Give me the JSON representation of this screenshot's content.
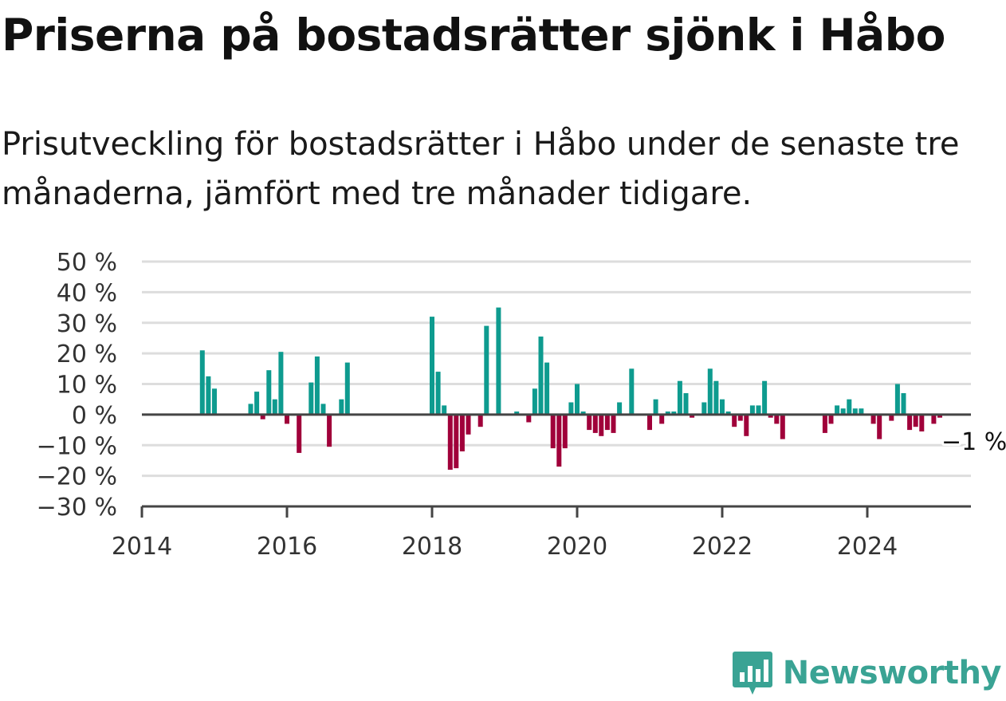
{
  "title": "Priserna på bostadsrätter sjönk i Håbo",
  "subtitle": "Prisutveckling för bostadsrätter i Håbo under de senaste tre månaderna, jämfört med tre månader tidigare.",
  "brand": {
    "name": "Newsworthy",
    "icon": "newsworthy-logo-icon",
    "color": "#3aa394"
  },
  "colors": {
    "positive": "#0e9b8f",
    "negative": "#a0003a",
    "grid": "#dddddd",
    "axis": "#444444"
  },
  "chart_data": {
    "type": "bar",
    "title": "",
    "xlabel": "",
    "ylabel": "",
    "ylim": [
      -30,
      50
    ],
    "xlim": [
      "2014-01",
      "2025-06"
    ],
    "grid": true,
    "y_ticks": [
      {
        "value": 50,
        "label": "50 %"
      },
      {
        "value": 40,
        "label": "40 %"
      },
      {
        "value": 30,
        "label": "30 %"
      },
      {
        "value": 20,
        "label": "20 %"
      },
      {
        "value": 10,
        "label": "10 %"
      },
      {
        "value": 0,
        "label": "0 %"
      },
      {
        "value": -10,
        "label": "−10 %"
      },
      {
        "value": -20,
        "label": "−20 %"
      },
      {
        "value": -30,
        "label": "−30 %"
      }
    ],
    "x_ticks": [
      {
        "value": "2014-01",
        "label": "2014"
      },
      {
        "value": "2016-01",
        "label": "2016"
      },
      {
        "value": "2018-01",
        "label": "2018"
      },
      {
        "value": "2020-01",
        "label": "2020"
      },
      {
        "value": "2022-01",
        "label": "2022"
      },
      {
        "value": "2024-01",
        "label": "2024"
      }
    ],
    "annotation": {
      "label": "−1 %",
      "x": "2025-01",
      "y": -1
    },
    "series": [
      {
        "x": [
          "2014-11",
          "2014-12",
          "2015-01",
          "2015-07",
          "2015-08",
          "2015-09",
          "2015-10",
          "2015-11",
          "2015-12",
          "2016-01",
          "2016-03",
          "2016-05",
          "2016-06",
          "2016-07",
          "2016-08",
          "2016-10",
          "2016-11",
          "2018-01",
          "2018-02",
          "2018-03",
          "2018-04",
          "2018-05",
          "2018-06",
          "2018-07",
          "2018-09",
          "2018-10",
          "2018-12",
          "2019-03",
          "2019-05",
          "2019-06",
          "2019-07",
          "2019-08",
          "2019-09",
          "2019-10",
          "2019-11",
          "2019-12",
          "2020-01",
          "2020-02",
          "2020-03",
          "2020-04",
          "2020-05",
          "2020-06",
          "2020-07",
          "2020-08",
          "2020-10",
          "2021-01",
          "2021-02",
          "2021-03",
          "2021-04",
          "2021-05",
          "2021-06",
          "2021-07",
          "2021-08",
          "2021-10",
          "2021-11",
          "2021-12",
          "2022-01",
          "2022-02",
          "2022-03",
          "2022-04",
          "2022-05",
          "2022-06",
          "2022-07",
          "2022-08",
          "2022-09",
          "2022-10",
          "2022-11",
          "2023-06",
          "2023-07",
          "2023-08",
          "2023-09",
          "2023-10",
          "2023-11",
          "2023-12",
          "2024-02",
          "2024-03",
          "2024-05",
          "2024-06",
          "2024-07",
          "2024-08",
          "2024-09",
          "2024-10",
          "2024-12",
          "2025-01"
        ],
        "values": [
          21,
          12.5,
          8.5,
          3.5,
          7.5,
          -1.5,
          14.5,
          5,
          20.5,
          -3,
          -12.5,
          10.5,
          19,
          3.5,
          -10.5,
          5,
          17,
          32,
          14,
          3,
          -18,
          -17.5,
          -12,
          -6.5,
          -4,
          29,
          35,
          1,
          -2.5,
          8.5,
          25.5,
          17,
          -11,
          -17,
          -11,
          4,
          10,
          1,
          -5,
          -6,
          -7,
          -5,
          -6,
          4,
          15,
          -5,
          5,
          -3,
          1,
          1,
          11,
          7,
          -1,
          4,
          15,
          11,
          5,
          1,
          -4,
          -2,
          -7,
          3,
          3,
          11,
          -1,
          -3,
          -8,
          -6,
          -3,
          3,
          2,
          5,
          2,
          2,
          -3,
          -8,
          -2,
          10,
          7,
          -5,
          -4,
          -5.5,
          -3,
          -1
        ]
      }
    ]
  }
}
